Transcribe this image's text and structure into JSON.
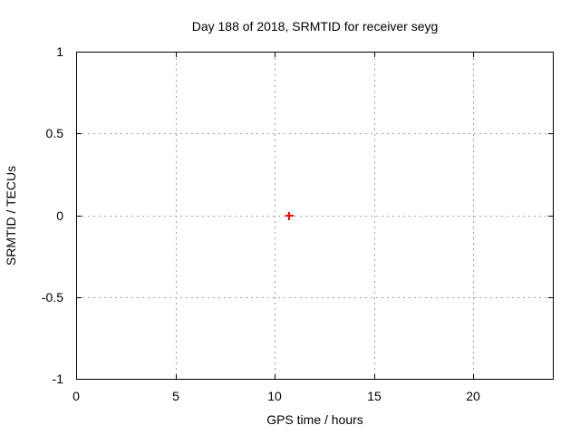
{
  "chart_data": {
    "type": "scatter",
    "title": "Day 188 of 2018, SRMTID for receiver seyg",
    "xlabel": "GPS time / hours",
    "ylabel": "SRMTID / TECUs",
    "xlim": [
      0,
      24
    ],
    "ylim": [
      -1,
      1
    ],
    "xticks": [
      0,
      5,
      10,
      15,
      20
    ],
    "yticks": [
      -1,
      -0.5,
      0,
      0.5,
      1
    ],
    "grid": "dashed, at all major ticks, mirrored inward tick marks on all four borders",
    "legend": "none",
    "series": [
      {
        "name": "SRMTID",
        "marker": "plus",
        "color": "#ff0000",
        "points": [
          [
            10.7,
            0.0
          ]
        ]
      }
    ]
  },
  "colors": {
    "background": "#ffffff",
    "axis": "#000000",
    "text": "#000000",
    "grid": "#a0a0a0",
    "marker": "#ff0000"
  }
}
